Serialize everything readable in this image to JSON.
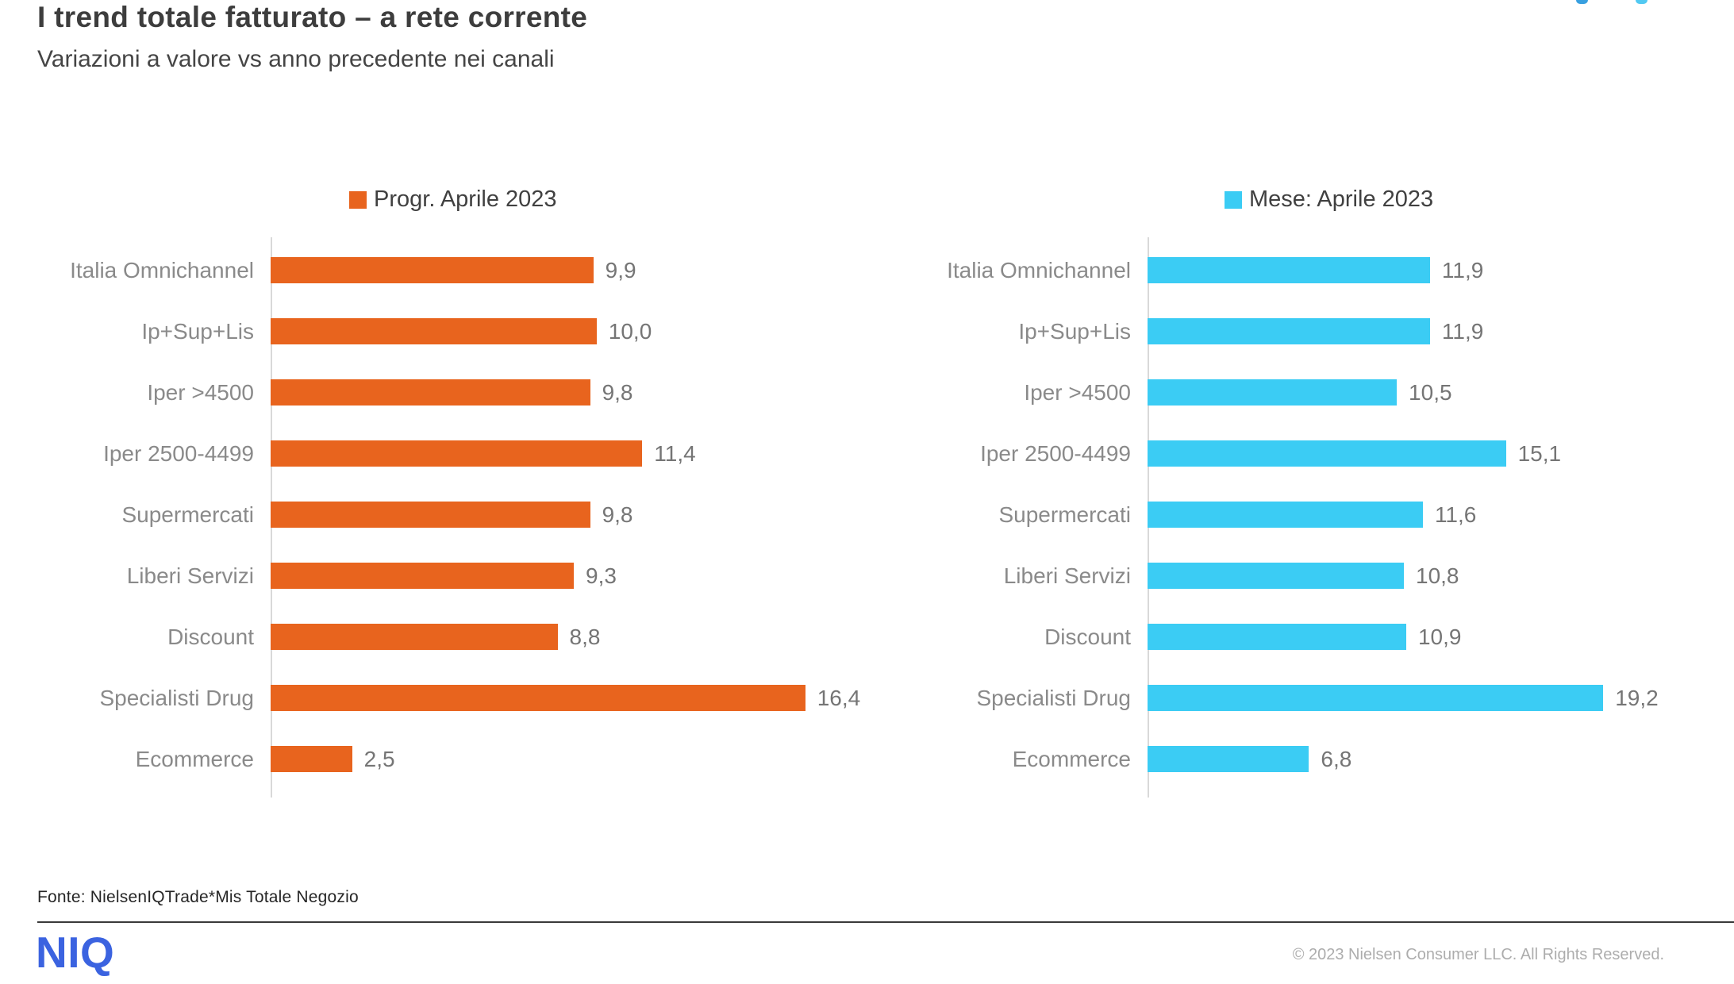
{
  "page": {
    "title": "I trend totale fatturato – a rete corrente",
    "subtitle": "Variazioni a valore vs anno precedente nei canali",
    "source_note": "Fonte: NielsenIQTrade*Mis Totale Negozio",
    "logo_text": "NIQ",
    "copyright": "© 2023 Nielsen Consumer LLC. All Rights Reserved."
  },
  "colors": {
    "orange": "#e8641e",
    "cyan": "#3bccf4",
    "niq_blue": "#3b63e0",
    "axis_gray": "#d9d9d9",
    "label_gray": "#8a8a8a",
    "value_gray": "#757575"
  },
  "chart_data": [
    {
      "type": "bar",
      "orientation": "horizontal",
      "title": "Progr. Aprile 2023",
      "legend": "Progr. Aprile 2023",
      "legend_position": "top",
      "color": "#e8641e",
      "categories": [
        "Italia Omnichannel",
        "Ip+Sup+Lis",
        "Iper >4500",
        "Iper 2500-4499",
        "Supermercati",
        "Liberi Servizi",
        "Discount",
        "Specialisti Drug",
        "Ecommerce"
      ],
      "values": [
        9.9,
        10.0,
        9.8,
        11.4,
        9.8,
        9.3,
        8.8,
        16.4,
        2.5
      ],
      "value_decimal_separator": "comma",
      "xlim": [
        0,
        18.5
      ],
      "grid": false
    },
    {
      "type": "bar",
      "orientation": "horizontal",
      "title": "Mese: Aprile 2023",
      "legend": "Mese: Aprile 2023",
      "legend_position": "top",
      "color": "#3bccf4",
      "categories": [
        "Italia Omnichannel",
        "Ip+Sup+Lis",
        "Iper >4500",
        "Iper 2500-4499",
        "Supermercati",
        "Liberi Servizi",
        "Discount",
        "Specialisti Drug",
        "Ecommerce"
      ],
      "values": [
        11.9,
        11.9,
        10.5,
        15.1,
        11.6,
        10.8,
        10.9,
        19.2,
        6.8
      ],
      "value_decimal_separator": "comma",
      "xlim": [
        0,
        21.4
      ],
      "grid": false
    }
  ]
}
